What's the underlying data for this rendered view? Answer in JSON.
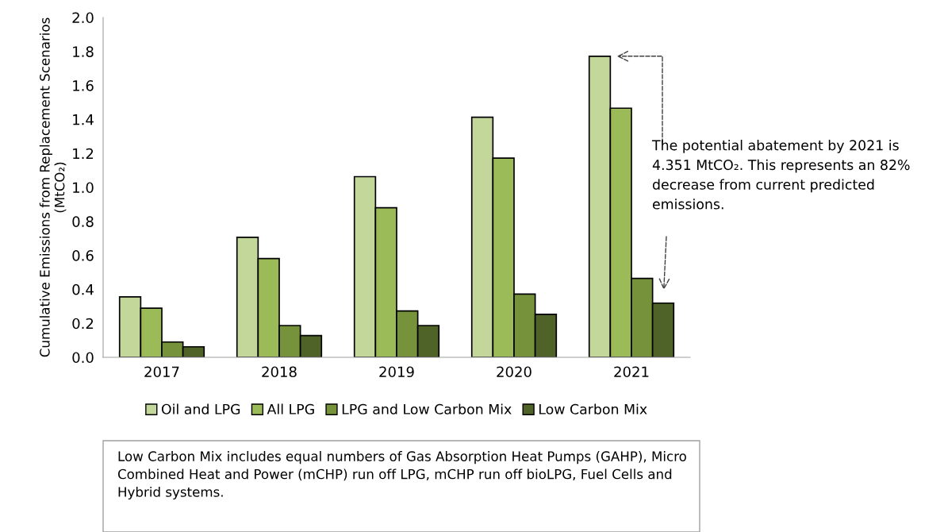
{
  "chart_data": {
    "type": "bar",
    "ylabel": "Cumulative Emissions from Replacement Scenarios (MtCO₂)",
    "categories": [
      "2017",
      "2018",
      "2019",
      "2020",
      "2021"
    ],
    "series": [
      {
        "name": "Oil and LPG",
        "color": "#c4d79b",
        "values": [
          0.356,
          0.706,
          1.063,
          1.413,
          1.772
        ]
      },
      {
        "name": "All LPG",
        "color": "#9bbb59",
        "values": [
          0.289,
          0.581,
          0.88,
          1.172,
          1.466
        ]
      },
      {
        "name": "LPG and Low Carbon Mix",
        "color": "#76933c",
        "values": [
          0.09,
          0.187,
          0.273,
          0.372,
          0.464
        ]
      },
      {
        "name": "Low Carbon Mix",
        "color": "#4f6228",
        "values": [
          0.062,
          0.128,
          0.187,
          0.253,
          0.319
        ]
      }
    ],
    "ylim": [
      0,
      2.0
    ],
    "yticks": [
      {
        "value": 0,
        "label": "0.0"
      },
      {
        "value": 0.2,
        "label": "0.2"
      },
      {
        "value": 0.4,
        "label": "0.4"
      },
      {
        "value": 0.6,
        "label": "0.6"
      },
      {
        "value": 0.8,
        "label": "0.8"
      },
      {
        "value": 1.0,
        "label": "1.0"
      },
      {
        "value": 1.2,
        "label": "1.2"
      },
      {
        "value": 1.4,
        "label": "1.4"
      },
      {
        "value": 1.6,
        "label": "1.6"
      },
      {
        "value": 1.8,
        "label": "1.8"
      },
      {
        "value": 2.0,
        "label": "2.0"
      }
    ],
    "grid": false,
    "legend": "bottom",
    "annotations": [
      "The potential abatement by 2021 is 4.351 MtCO₂. This represents an 82% decrease from current predicted emissions.",
      "Low Carbon Mix includes equal numbers of Gas Absorption Heat Pumps (GAHP), Micro Combined Heat and Power (mCHP) run off LPG, mCHP run off bioLPG, Fuel Cells and Hybrid systems."
    ]
  }
}
